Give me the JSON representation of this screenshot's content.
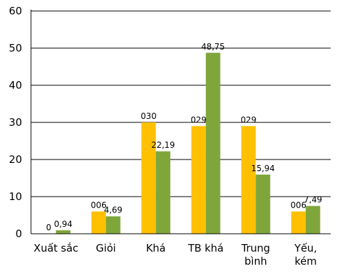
{
  "chart_data": {
    "type": "bar",
    "categories": [
      [
        "Xuất sắc"
      ],
      [
        "Giỏi"
      ],
      [
        "Khá"
      ],
      [
        "TB khá"
      ],
      [
        "Trung",
        "bình"
      ],
      [
        "Yếu,",
        "kém"
      ]
    ],
    "series": [
      {
        "color": "#FFC000",
        "values": [
          0,
          6,
          30,
          29,
          29,
          6
        ],
        "labels": [
          "0",
          "006",
          "030",
          "029",
          "029",
          "006"
        ]
      },
      {
        "color": "#7FA63B",
        "values": [
          0.94,
          4.69,
          22.19,
          48.75,
          15.94,
          7.49
        ],
        "labels": [
          "0,94",
          "4,69",
          "22,19",
          "48,75",
          "15,94",
          "7,49"
        ]
      }
    ],
    "ylim": [
      0,
      60
    ],
    "yticks": [
      "0",
      "10",
      "20",
      "30",
      "40",
      "50",
      "60"
    ],
    "grid": true
  }
}
